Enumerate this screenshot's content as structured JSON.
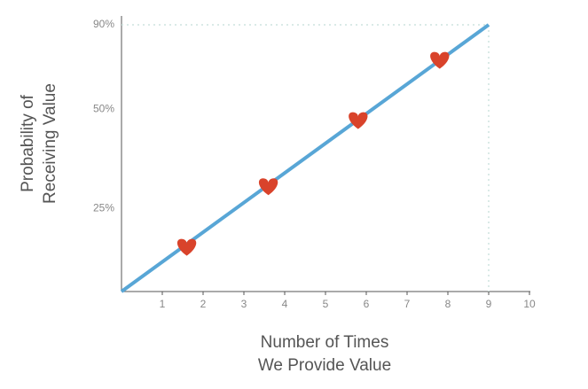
{
  "chart_data": {
    "type": "line",
    "xlabel": [
      "Number of Times",
      "We Provide Value"
    ],
    "ylabel": [
      "Probability of",
      "Receiving Value"
    ],
    "xlim": [
      0,
      10
    ],
    "xticks": [
      1,
      2,
      3,
      4,
      5,
      6,
      7,
      8,
      9,
      10
    ],
    "ylim": [
      14,
      90
    ],
    "yscale": "log",
    "yticks": [
      {
        "value": 25,
        "label": "25%"
      },
      {
        "value": 50,
        "label": "50%"
      },
      {
        "value": 90,
        "label": "90%"
      }
    ],
    "series": [
      {
        "type": "line",
        "color": "#58a6d6",
        "x": [
          0,
          9
        ],
        "values": [
          14,
          90
        ]
      },
      {
        "type": "scatter",
        "marker": "heart",
        "color": "#d9432b",
        "x": [
          1.6,
          3.6,
          5.8,
          7.8
        ],
        "values": [
          19,
          29,
          46,
          70
        ]
      }
    ]
  }
}
